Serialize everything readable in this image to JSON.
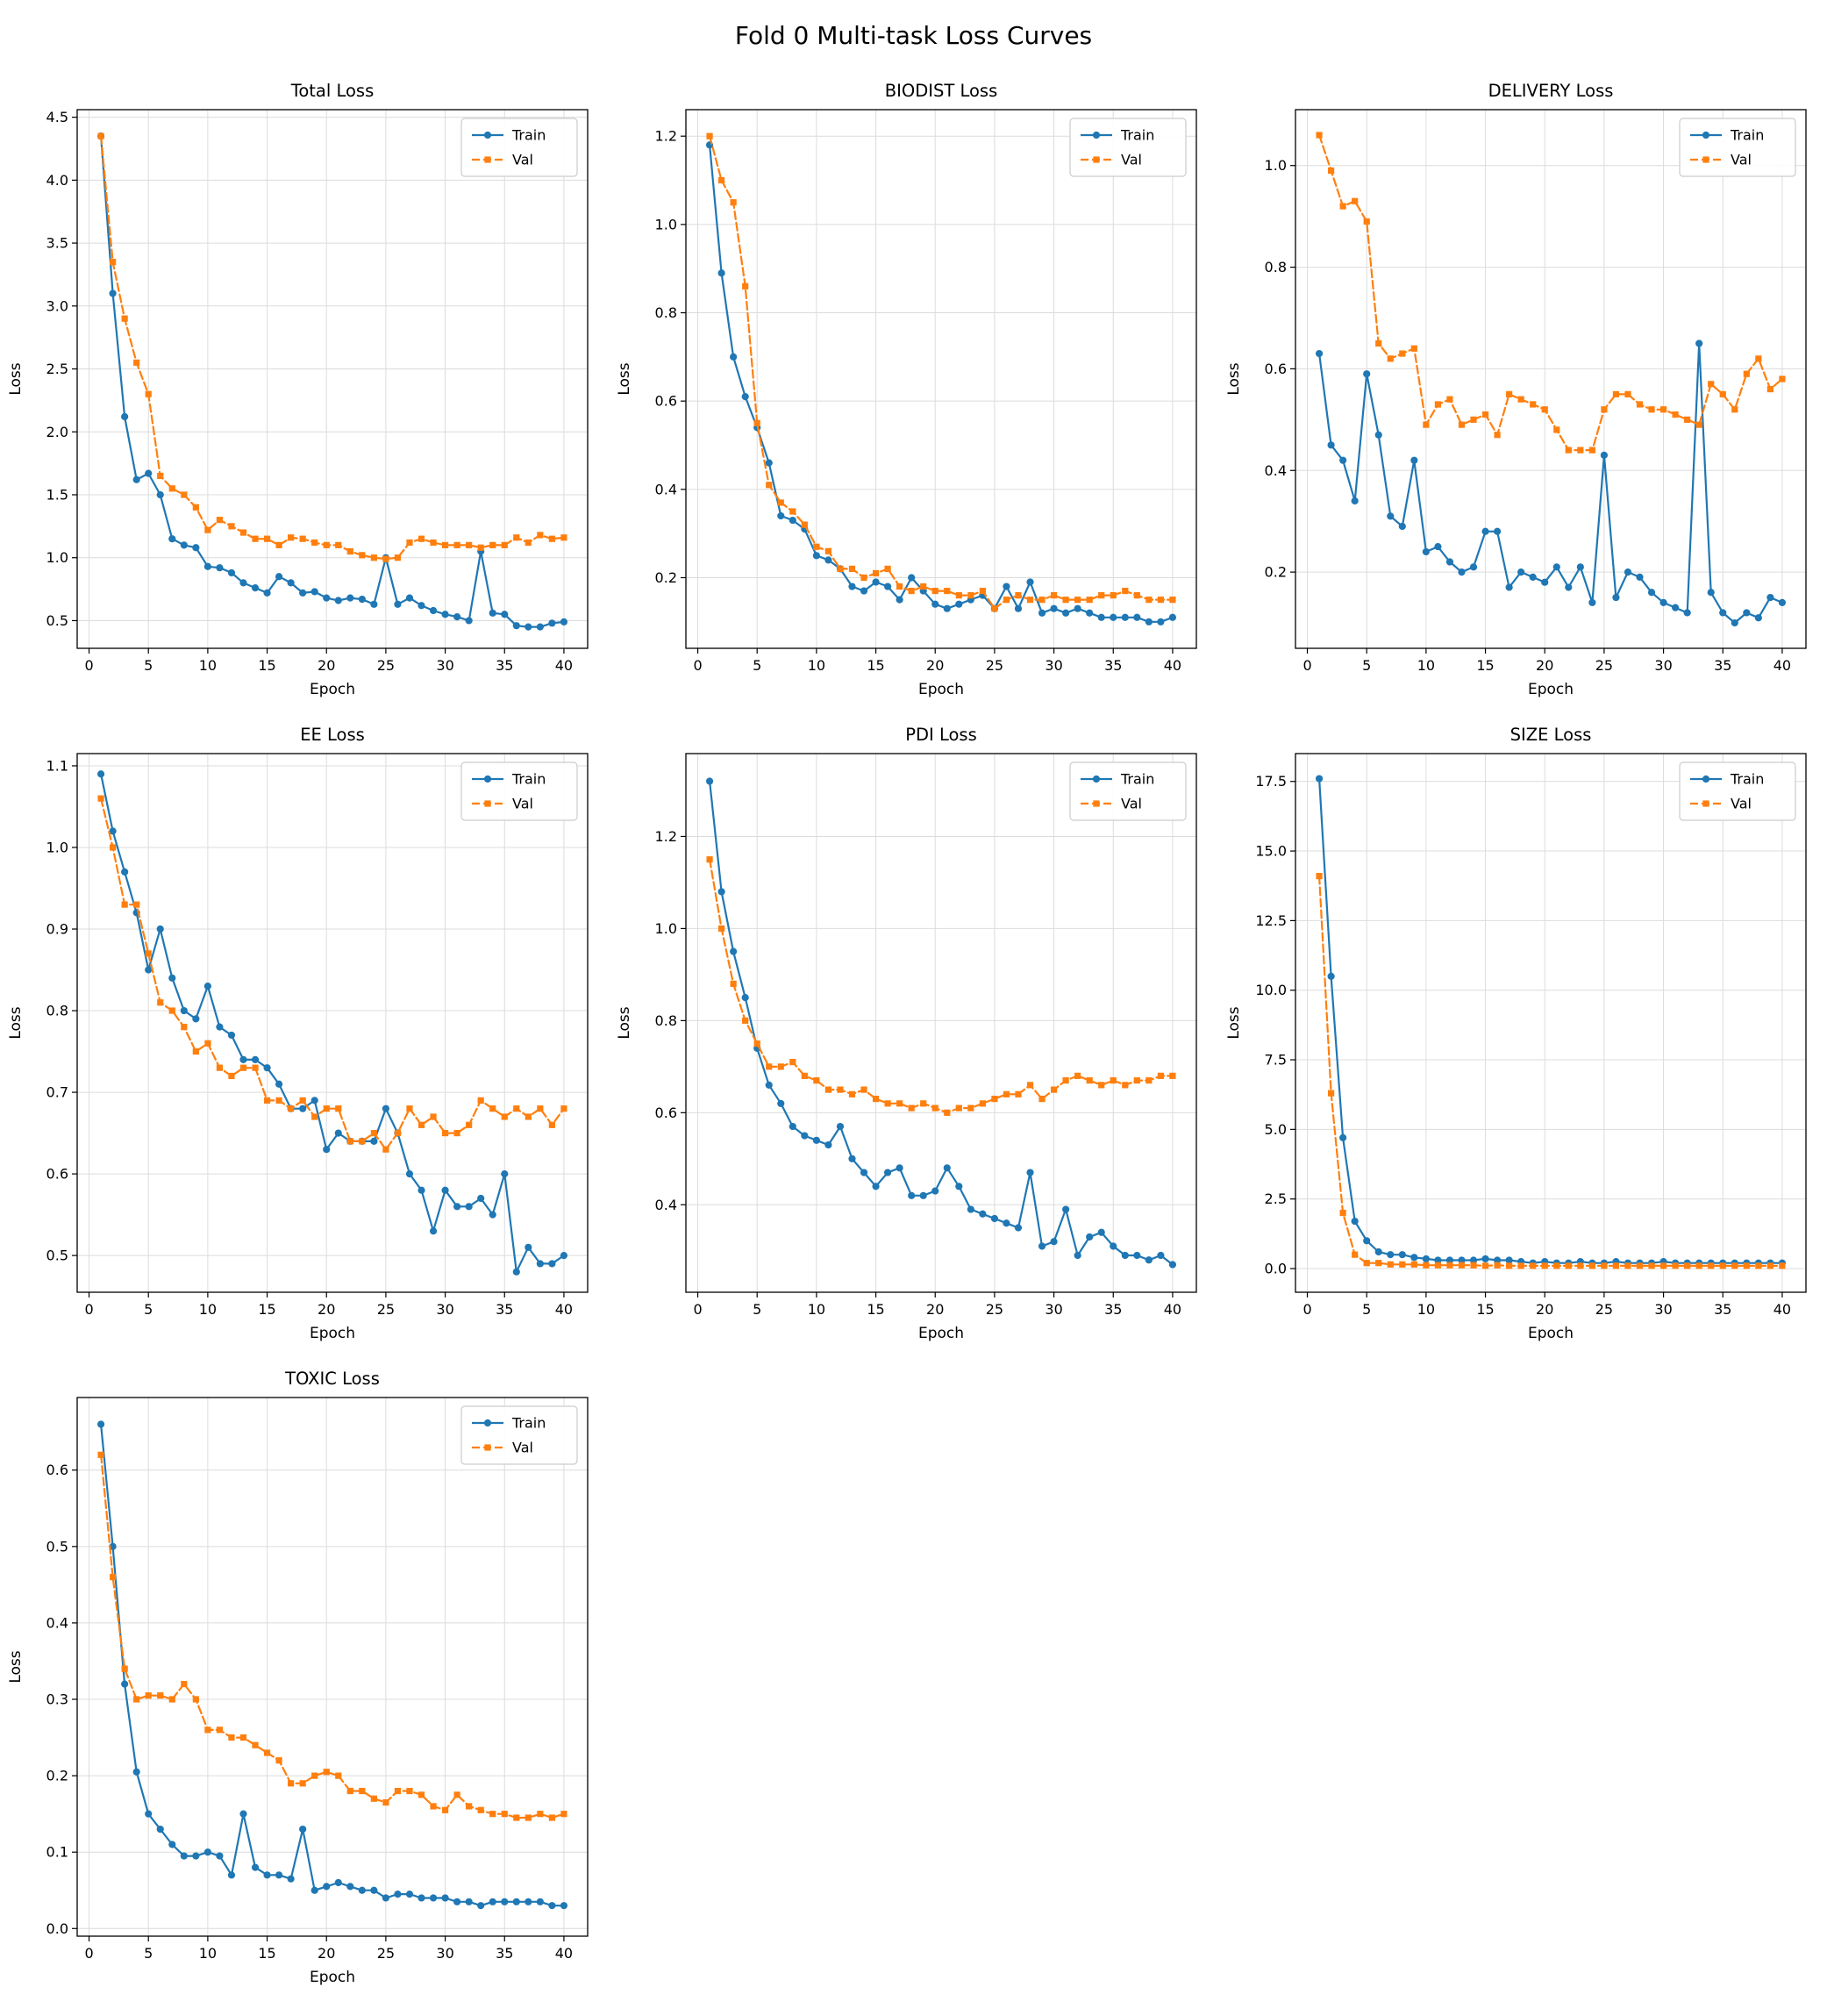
{
  "figure": {
    "title": "Fold 0 Multi-task Loss Curves"
  },
  "style": {
    "train_color": "#1f77b4",
    "val_color": "#ff7f0e",
    "grid_color": "#dcdcdc",
    "spine_color": "#000000",
    "legend_border": "#cccccc"
  },
  "epochs": [
    1,
    2,
    3,
    4,
    5,
    6,
    7,
    8,
    9,
    10,
    11,
    12,
    13,
    14,
    15,
    16,
    17,
    18,
    19,
    20,
    21,
    22,
    23,
    24,
    25,
    26,
    27,
    28,
    29,
    30,
    31,
    32,
    33,
    34,
    35,
    36,
    37,
    38,
    39,
    40
  ],
  "chart_data": [
    {
      "type": "line",
      "slug": "total-loss",
      "title": "Total Loss",
      "xlabel": "Epoch",
      "ylabel": "Loss",
      "xlim": [
        -1,
        42
      ],
      "ylim": [
        0.28,
        4.56
      ],
      "xticks": [
        0,
        5,
        10,
        15,
        20,
        25,
        30,
        35,
        40
      ],
      "yticks": [
        0.5,
        1.0,
        1.5,
        2.0,
        2.5,
        3.0,
        3.5,
        4.0,
        4.5
      ],
      "grid": true,
      "legend_position": "top-right",
      "series": [
        {
          "name": "Train",
          "color": "#1f77b4",
          "marker": "circle",
          "dash": false,
          "values": [
            4.35,
            3.1,
            2.12,
            1.62,
            1.67,
            1.5,
            1.15,
            1.1,
            1.08,
            0.93,
            0.92,
            0.88,
            0.8,
            0.76,
            0.72,
            0.85,
            0.8,
            0.72,
            0.73,
            0.68,
            0.66,
            0.68,
            0.67,
            0.63,
            1.0,
            0.63,
            0.68,
            0.62,
            0.58,
            0.55,
            0.53,
            0.5,
            1.05,
            0.56,
            0.55,
            0.46,
            0.45,
            0.45,
            0.48,
            0.49
          ]
        },
        {
          "name": "Val",
          "color": "#ff7f0e",
          "marker": "square",
          "dash": true,
          "values": [
            4.35,
            3.35,
            2.9,
            2.55,
            2.3,
            1.65,
            1.55,
            1.5,
            1.4,
            1.22,
            1.3,
            1.25,
            1.2,
            1.15,
            1.15,
            1.1,
            1.16,
            1.15,
            1.12,
            1.1,
            1.1,
            1.05,
            1.02,
            1.0,
            0.99,
            1.0,
            1.12,
            1.15,
            1.12,
            1.1,
            1.1,
            1.1,
            1.08,
            1.1,
            1.1,
            1.16,
            1.12,
            1.18,
            1.15,
            1.16
          ]
        }
      ]
    },
    {
      "type": "line",
      "slug": "biodist-loss",
      "title": "BIODIST Loss",
      "xlabel": "Epoch",
      "ylabel": "Loss",
      "xlim": [
        -1,
        42
      ],
      "ylim": [
        0.04,
        1.26
      ],
      "xticks": [
        0,
        5,
        10,
        15,
        20,
        25,
        30,
        35,
        40
      ],
      "yticks": [
        0.2,
        0.4,
        0.6,
        0.8,
        1.0,
        1.2
      ],
      "grid": true,
      "legend_position": "top-right",
      "series": [
        {
          "name": "Train",
          "color": "#1f77b4",
          "marker": "circle",
          "dash": false,
          "values": [
            1.18,
            0.89,
            0.7,
            0.61,
            0.54,
            0.46,
            0.34,
            0.33,
            0.31,
            0.25,
            0.24,
            0.22,
            0.18,
            0.17,
            0.19,
            0.18,
            0.15,
            0.2,
            0.17,
            0.14,
            0.13,
            0.14,
            0.15,
            0.16,
            0.13,
            0.18,
            0.13,
            0.19,
            0.12,
            0.13,
            0.12,
            0.13,
            0.12,
            0.11,
            0.11,
            0.11,
            0.11,
            0.1,
            0.1,
            0.11
          ]
        },
        {
          "name": "Val",
          "color": "#ff7f0e",
          "marker": "square",
          "dash": true,
          "values": [
            1.2,
            1.1,
            1.05,
            0.86,
            0.55,
            0.41,
            0.37,
            0.35,
            0.32,
            0.27,
            0.26,
            0.22,
            0.22,
            0.2,
            0.21,
            0.22,
            0.18,
            0.17,
            0.18,
            0.17,
            0.17,
            0.16,
            0.16,
            0.17,
            0.13,
            0.15,
            0.16,
            0.15,
            0.15,
            0.16,
            0.15,
            0.15,
            0.15,
            0.16,
            0.16,
            0.17,
            0.16,
            0.15,
            0.15,
            0.15
          ]
        }
      ]
    },
    {
      "type": "line",
      "slug": "delivery-loss",
      "title": "DELIVERY Loss",
      "xlabel": "Epoch",
      "ylabel": "Loss",
      "xlim": [
        -1,
        42
      ],
      "ylim": [
        0.05,
        1.11
      ],
      "xticks": [
        0,
        5,
        10,
        15,
        20,
        25,
        30,
        35,
        40
      ],
      "yticks": [
        0.2,
        0.4,
        0.6,
        0.8,
        1.0
      ],
      "grid": true,
      "legend_position": "top-right",
      "series": [
        {
          "name": "Train",
          "color": "#1f77b4",
          "marker": "circle",
          "dash": false,
          "values": [
            0.63,
            0.45,
            0.42,
            0.34,
            0.59,
            0.47,
            0.31,
            0.29,
            0.42,
            0.24,
            0.25,
            0.22,
            0.2,
            0.21,
            0.28,
            0.28,
            0.17,
            0.2,
            0.19,
            0.18,
            0.21,
            0.17,
            0.21,
            0.14,
            0.43,
            0.15,
            0.2,
            0.19,
            0.16,
            0.14,
            0.13,
            0.12,
            0.65,
            0.16,
            0.12,
            0.1,
            0.12,
            0.11,
            0.15,
            0.14
          ]
        },
        {
          "name": "Val",
          "color": "#ff7f0e",
          "marker": "square",
          "dash": true,
          "values": [
            1.06,
            0.99,
            0.92,
            0.93,
            0.89,
            0.65,
            0.62,
            0.63,
            0.64,
            0.49,
            0.53,
            0.54,
            0.49,
            0.5,
            0.51,
            0.47,
            0.55,
            0.54,
            0.53,
            0.52,
            0.48,
            0.44,
            0.44,
            0.44,
            0.52,
            0.55,
            0.55,
            0.53,
            0.52,
            0.52,
            0.51,
            0.5,
            0.49,
            0.57,
            0.55,
            0.52,
            0.59,
            0.62,
            0.56,
            0.58
          ]
        }
      ]
    },
    {
      "type": "line",
      "slug": "ee-loss",
      "title": "EE Loss",
      "xlabel": "Epoch",
      "ylabel": "Loss",
      "xlim": [
        -1,
        42
      ],
      "ylim": [
        0.455,
        1.115
      ],
      "xticks": [
        0,
        5,
        10,
        15,
        20,
        25,
        30,
        35,
        40
      ],
      "yticks": [
        0.5,
        0.6,
        0.7,
        0.8,
        0.9,
        1.0,
        1.1
      ],
      "grid": true,
      "legend_position": "top-right",
      "series": [
        {
          "name": "Train",
          "color": "#1f77b4",
          "marker": "circle",
          "dash": false,
          "values": [
            1.09,
            1.02,
            0.97,
            0.92,
            0.85,
            0.9,
            0.84,
            0.8,
            0.79,
            0.83,
            0.78,
            0.77,
            0.74,
            0.74,
            0.73,
            0.71,
            0.68,
            0.68,
            0.69,
            0.63,
            0.65,
            0.64,
            0.64,
            0.64,
            0.68,
            0.65,
            0.6,
            0.58,
            0.53,
            0.58,
            0.56,
            0.56,
            0.57,
            0.55,
            0.6,
            0.48,
            0.51,
            0.49,
            0.49,
            0.5
          ]
        },
        {
          "name": "Val",
          "color": "#ff7f0e",
          "marker": "square",
          "dash": true,
          "values": [
            1.06,
            1.0,
            0.93,
            0.93,
            0.87,
            0.81,
            0.8,
            0.78,
            0.75,
            0.76,
            0.73,
            0.72,
            0.73,
            0.73,
            0.69,
            0.69,
            0.68,
            0.69,
            0.67,
            0.68,
            0.68,
            0.64,
            0.64,
            0.65,
            0.63,
            0.65,
            0.68,
            0.66,
            0.67,
            0.65,
            0.65,
            0.66,
            0.69,
            0.68,
            0.67,
            0.68,
            0.67,
            0.68,
            0.66,
            0.68
          ]
        }
      ]
    },
    {
      "type": "line",
      "slug": "pdi-loss",
      "title": "PDI Loss",
      "xlabel": "Epoch",
      "ylabel": "Loss",
      "xlim": [
        -1,
        42
      ],
      "ylim": [
        0.21,
        1.38
      ],
      "xticks": [
        0,
        5,
        10,
        15,
        20,
        25,
        30,
        35,
        40
      ],
      "yticks": [
        0.4,
        0.6,
        0.8,
        1.0,
        1.2
      ],
      "grid": true,
      "legend_position": "top-right",
      "series": [
        {
          "name": "Train",
          "color": "#1f77b4",
          "marker": "circle",
          "dash": false,
          "values": [
            1.32,
            1.08,
            0.95,
            0.85,
            0.74,
            0.66,
            0.62,
            0.57,
            0.55,
            0.54,
            0.53,
            0.57,
            0.5,
            0.47,
            0.44,
            0.47,
            0.48,
            0.42,
            0.42,
            0.43,
            0.48,
            0.44,
            0.39,
            0.38,
            0.37,
            0.36,
            0.35,
            0.47,
            0.31,
            0.32,
            0.39,
            0.29,
            0.33,
            0.34,
            0.31,
            0.29,
            0.29,
            0.28,
            0.29,
            0.27
          ]
        },
        {
          "name": "Val",
          "color": "#ff7f0e",
          "marker": "square",
          "dash": true,
          "values": [
            1.15,
            1.0,
            0.88,
            0.8,
            0.75,
            0.7,
            0.7,
            0.71,
            0.68,
            0.67,
            0.65,
            0.65,
            0.64,
            0.65,
            0.63,
            0.62,
            0.62,
            0.61,
            0.62,
            0.61,
            0.6,
            0.61,
            0.61,
            0.62,
            0.63,
            0.64,
            0.64,
            0.66,
            0.63,
            0.65,
            0.67,
            0.68,
            0.67,
            0.66,
            0.67,
            0.66,
            0.67,
            0.67,
            0.68,
            0.68
          ]
        }
      ]
    },
    {
      "type": "line",
      "slug": "size-loss",
      "title": "SIZE Loss",
      "xlabel": "Epoch",
      "ylabel": "Loss",
      "xlim": [
        -1,
        42
      ],
      "ylim": [
        -0.85,
        18.5
      ],
      "xticks": [
        0,
        5,
        10,
        15,
        20,
        25,
        30,
        35,
        40
      ],
      "yticks": [
        0.0,
        2.5,
        5.0,
        7.5,
        10.0,
        12.5,
        15.0,
        17.5
      ],
      "grid": true,
      "legend_position": "top-right",
      "series": [
        {
          "name": "Train",
          "color": "#1f77b4",
          "marker": "circle",
          "dash": false,
          "values": [
            17.6,
            10.5,
            4.7,
            1.7,
            1.0,
            0.6,
            0.5,
            0.5,
            0.4,
            0.35,
            0.3,
            0.3,
            0.3,
            0.3,
            0.35,
            0.3,
            0.3,
            0.25,
            0.2,
            0.25,
            0.2,
            0.2,
            0.25,
            0.2,
            0.2,
            0.25,
            0.2,
            0.2,
            0.2,
            0.25,
            0.2,
            0.2,
            0.2,
            0.2,
            0.2,
            0.2,
            0.2,
            0.2,
            0.2,
            0.2
          ]
        },
        {
          "name": "Val",
          "color": "#ff7f0e",
          "marker": "square",
          "dash": true,
          "values": [
            14.1,
            6.3,
            2.0,
            0.5,
            0.2,
            0.2,
            0.15,
            0.15,
            0.15,
            0.12,
            0.12,
            0.12,
            0.12,
            0.12,
            0.1,
            0.12,
            0.1,
            0.1,
            0.1,
            0.1,
            0.1,
            0.1,
            0.1,
            0.1,
            0.1,
            0.1,
            0.1,
            0.1,
            0.1,
            0.1,
            0.1,
            0.1,
            0.1,
            0.1,
            0.1,
            0.1,
            0.1,
            0.1,
            0.1,
            0.1
          ]
        }
      ]
    },
    {
      "type": "line",
      "slug": "toxic-loss",
      "title": "TOXIC Loss",
      "xlabel": "Epoch",
      "ylabel": "Loss",
      "xlim": [
        -1,
        42
      ],
      "ylim": [
        -0.01,
        0.695
      ],
      "xticks": [
        0,
        5,
        10,
        15,
        20,
        25,
        30,
        35,
        40
      ],
      "yticks": [
        0.0,
        0.1,
        0.2,
        0.3,
        0.4,
        0.5,
        0.6
      ],
      "grid": true,
      "legend_position": "top-right",
      "series": [
        {
          "name": "Train",
          "color": "#1f77b4",
          "marker": "circle",
          "dash": false,
          "values": [
            0.66,
            0.5,
            0.32,
            0.205,
            0.15,
            0.13,
            0.11,
            0.095,
            0.095,
            0.1,
            0.095,
            0.07,
            0.15,
            0.08,
            0.07,
            0.07,
            0.065,
            0.13,
            0.05,
            0.055,
            0.06,
            0.055,
            0.05,
            0.05,
            0.04,
            0.045,
            0.045,
            0.04,
            0.04,
            0.04,
            0.035,
            0.035,
            0.03,
            0.035,
            0.035,
            0.035,
            0.035,
            0.035,
            0.03,
            0.03
          ]
        },
        {
          "name": "Val",
          "color": "#ff7f0e",
          "marker": "square",
          "dash": true,
          "values": [
            0.62,
            0.46,
            0.34,
            0.3,
            0.305,
            0.305,
            0.3,
            0.32,
            0.3,
            0.26,
            0.26,
            0.25,
            0.25,
            0.24,
            0.23,
            0.22,
            0.19,
            0.19,
            0.2,
            0.205,
            0.2,
            0.18,
            0.18,
            0.17,
            0.165,
            0.18,
            0.18,
            0.175,
            0.16,
            0.155,
            0.175,
            0.16,
            0.155,
            0.15,
            0.15,
            0.145,
            0.145,
            0.15,
            0.145,
            0.15
          ]
        }
      ]
    }
  ]
}
